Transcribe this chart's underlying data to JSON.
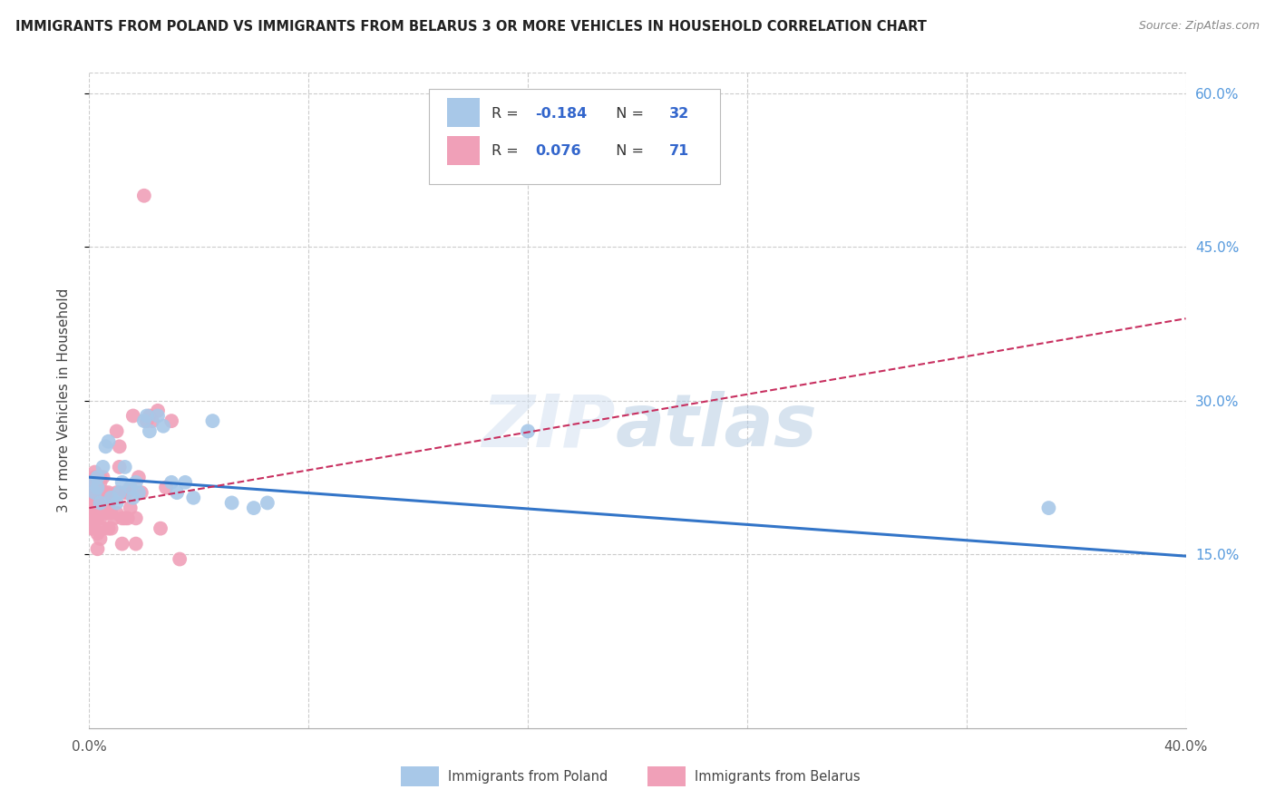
{
  "title": "IMMIGRANTS FROM POLAND VS IMMIGRANTS FROM BELARUS 3 OR MORE VEHICLES IN HOUSEHOLD CORRELATION CHART",
  "source": "Source: ZipAtlas.com",
  "ylabel": "3 or more Vehicles in Household",
  "xlim": [
    0.0,
    0.4
  ],
  "ylim": [
    -0.02,
    0.62
  ],
  "right_yticks": [
    0.15,
    0.3,
    0.45,
    0.6
  ],
  "right_yticklabels": [
    "15.0%",
    "30.0%",
    "45.0%",
    "60.0%"
  ],
  "xtick_positions": [
    0.0,
    0.08,
    0.16,
    0.24,
    0.32,
    0.4
  ],
  "xticklabels": [
    "0.0%",
    "",
    "",
    "",
    "",
    "40.0%"
  ],
  "poland_R": -0.184,
  "poland_N": 32,
  "belarus_R": 0.076,
  "belarus_N": 71,
  "poland_color": "#a8c8e8",
  "poland_line_color": "#3375c8",
  "belarus_color": "#f0a0b8",
  "belarus_line_color": "#c83060",
  "watermark": "ZIPatlas",
  "poland_x": [
    0.001,
    0.002,
    0.003,
    0.003,
    0.004,
    0.005,
    0.006,
    0.007,
    0.008,
    0.01,
    0.011,
    0.012,
    0.013,
    0.015,
    0.016,
    0.017,
    0.018,
    0.02,
    0.021,
    0.022,
    0.025,
    0.027,
    0.03,
    0.032,
    0.035,
    0.038,
    0.045,
    0.052,
    0.06,
    0.065,
    0.16,
    0.35
  ],
  "poland_y": [
    0.22,
    0.21,
    0.225,
    0.215,
    0.2,
    0.235,
    0.255,
    0.26,
    0.205,
    0.2,
    0.21,
    0.22,
    0.235,
    0.215,
    0.205,
    0.22,
    0.21,
    0.28,
    0.285,
    0.27,
    0.285,
    0.275,
    0.22,
    0.21,
    0.22,
    0.205,
    0.28,
    0.2,
    0.195,
    0.2,
    0.27,
    0.195
  ],
  "belarus_x": [
    0.001,
    0.001,
    0.001,
    0.001,
    0.001,
    0.001,
    0.002,
    0.002,
    0.002,
    0.002,
    0.002,
    0.002,
    0.002,
    0.002,
    0.003,
    0.003,
    0.003,
    0.003,
    0.003,
    0.003,
    0.003,
    0.003,
    0.003,
    0.004,
    0.004,
    0.004,
    0.004,
    0.004,
    0.004,
    0.005,
    0.005,
    0.005,
    0.005,
    0.006,
    0.006,
    0.006,
    0.007,
    0.007,
    0.007,
    0.008,
    0.008,
    0.008,
    0.009,
    0.009,
    0.01,
    0.01,
    0.01,
    0.011,
    0.011,
    0.012,
    0.012,
    0.013,
    0.013,
    0.014,
    0.014,
    0.015,
    0.015,
    0.016,
    0.017,
    0.017,
    0.018,
    0.019,
    0.02,
    0.021,
    0.022,
    0.023,
    0.025,
    0.026,
    0.028,
    0.03,
    0.033
  ],
  "belarus_y": [
    0.175,
    0.185,
    0.19,
    0.2,
    0.205,
    0.215,
    0.175,
    0.185,
    0.195,
    0.2,
    0.21,
    0.22,
    0.225,
    0.23,
    0.155,
    0.17,
    0.185,
    0.195,
    0.2,
    0.205,
    0.21,
    0.22,
    0.225,
    0.165,
    0.185,
    0.2,
    0.21,
    0.22,
    0.225,
    0.175,
    0.195,
    0.21,
    0.225,
    0.19,
    0.2,
    0.21,
    0.175,
    0.195,
    0.21,
    0.175,
    0.19,
    0.205,
    0.185,
    0.205,
    0.19,
    0.21,
    0.27,
    0.235,
    0.255,
    0.16,
    0.185,
    0.185,
    0.21,
    0.185,
    0.21,
    0.195,
    0.215,
    0.285,
    0.16,
    0.185,
    0.225,
    0.21,
    0.5,
    0.28,
    0.285,
    0.28,
    0.29,
    0.175,
    0.215,
    0.28,
    0.145
  ],
  "poland_line_x": [
    0.0,
    0.4
  ],
  "poland_line_y": [
    0.225,
    0.148
  ],
  "belarus_line_x": [
    0.0,
    0.4
  ],
  "belarus_line_y": [
    0.195,
    0.38
  ]
}
